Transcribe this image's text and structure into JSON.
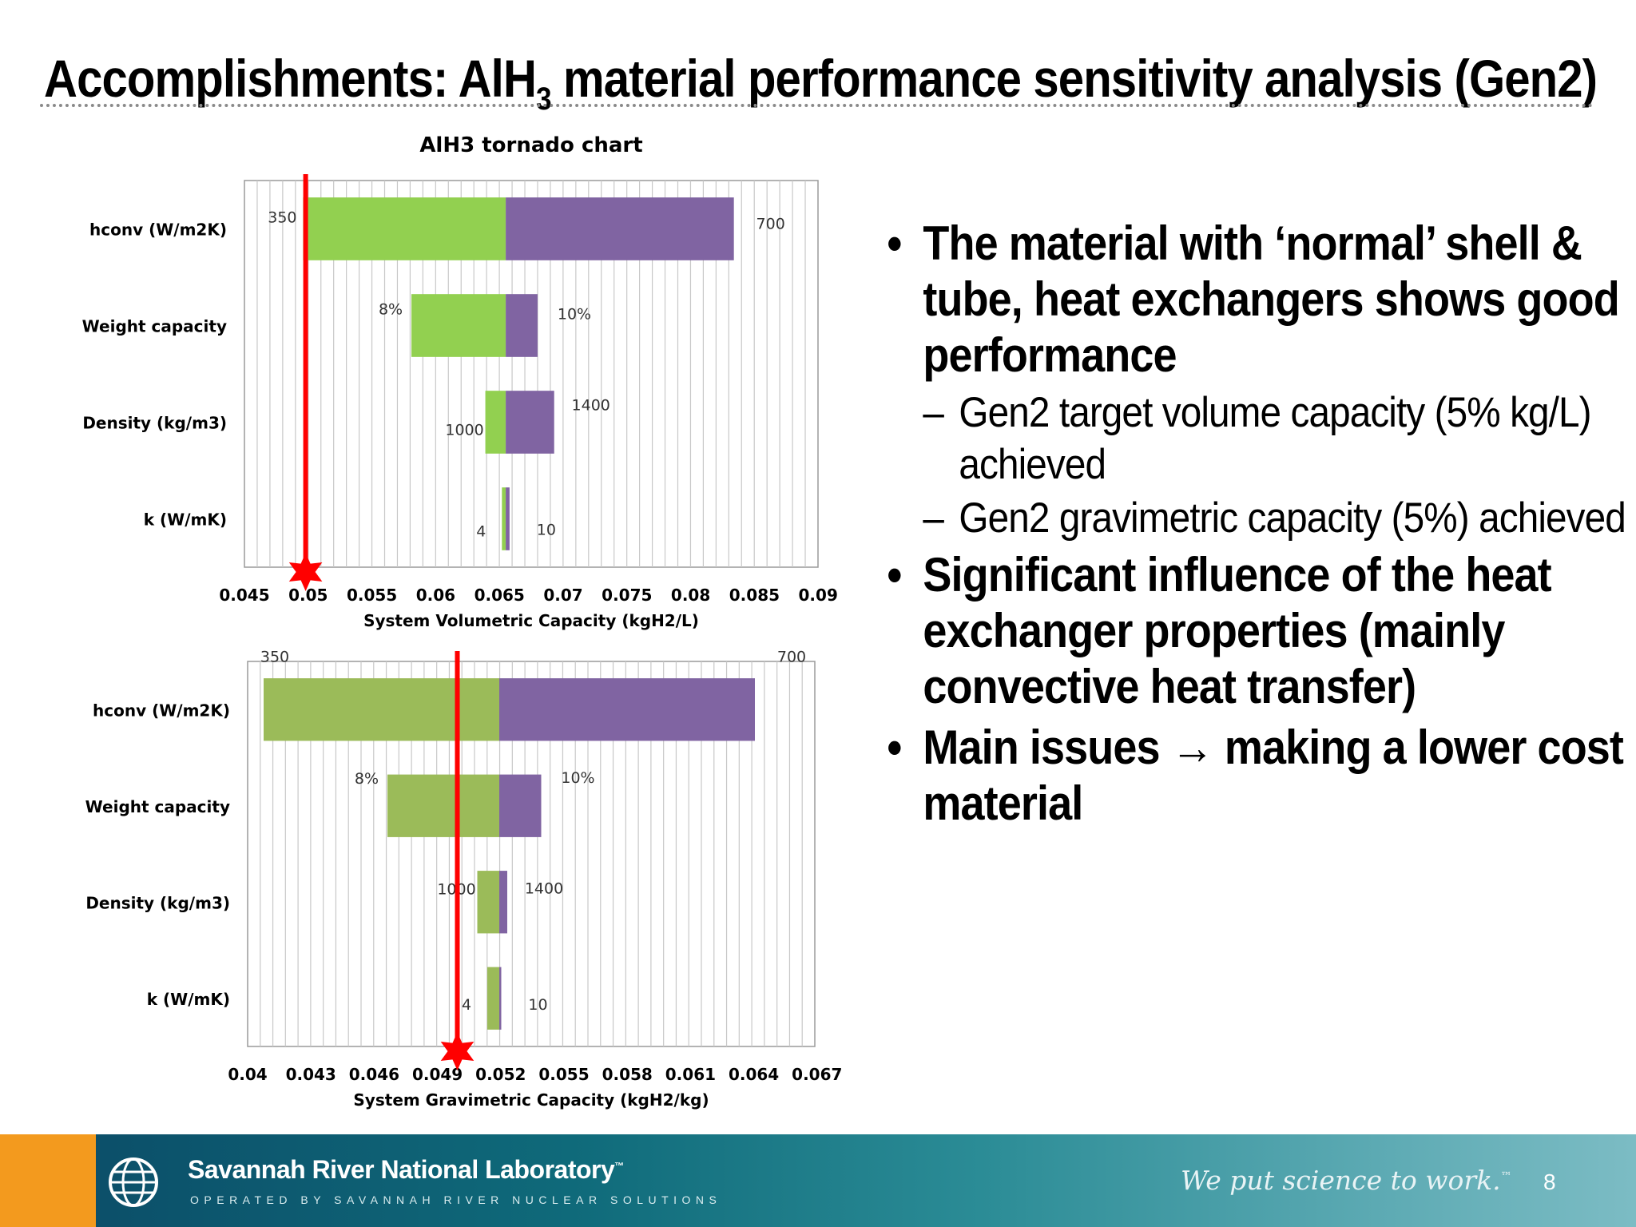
{
  "slide": {
    "title_main": "Accomplishments: AlH",
    "title_sub": "3",
    "title_rest": " material performance sensitivity analysis (Gen2)"
  },
  "chart_data": [
    {
      "type": "bar",
      "orientation": "horizontal-tornado",
      "title": "AlH3 tornado chart",
      "xlabel": "System Volumetric Capacity (kgH2/L)",
      "xlim": [
        0.045,
        0.09
      ],
      "xticks": [
        "0.045",
        "0.05",
        "0.055",
        "0.06",
        "0.065",
        "0.07",
        "0.075",
        "0.08",
        "0.085",
        "0.09"
      ],
      "baseline": 0.0655,
      "reference_line": 0.0498,
      "categories": [
        "hconv (W/m2K)",
        "Weight capacity",
        "Density (kg/m3)",
        "k (W/mK)"
      ],
      "bars": [
        {
          "low": 0.0496,
          "high": 0.0834,
          "low_label": "350",
          "high_label": "700"
        },
        {
          "low": 0.0581,
          "high": 0.068,
          "low_label": "8%",
          "high_label": "10%"
        },
        {
          "low": 0.0639,
          "high": 0.0693,
          "low_label": "1000",
          "high_label": "1400"
        },
        {
          "low": 0.0652,
          "high": 0.0658,
          "low_label": "4",
          "high_label": "10"
        }
      ],
      "colors": {
        "low": "#92d050",
        "high": "#8064a2",
        "marker": "#ff0000"
      },
      "grid": true
    },
    {
      "type": "bar",
      "orientation": "horizontal-tornado",
      "title": "",
      "xlabel": "System Gravimetric Capacity (kgH2/kg)",
      "xlim": [
        0.04,
        0.0684
      ],
      "xticks": [
        "0.04",
        "0.043",
        "0.046",
        "0.049",
        "0.052",
        "0.055",
        "0.058",
        "0.061",
        "0.064",
        "0.067"
      ],
      "baseline": 0.0526,
      "reference_line": 0.0505,
      "categories": [
        "hconv (W/m2K)",
        "Weight capacity",
        "Density (kg/m3)",
        "k (W/mK)"
      ],
      "bars": [
        {
          "low": 0.0408,
          "high": 0.0654,
          "low_label": "350",
          "high_label": "700"
        },
        {
          "low": 0.047,
          "high": 0.0547,
          "low_label": "8%",
          "high_label": "10%"
        },
        {
          "low": 0.0515,
          "high": 0.053,
          "low_label": "1000",
          "high_label": "1400"
        },
        {
          "low": 0.052,
          "high": 0.0527,
          "low_label": "4",
          "high_label": "10"
        }
      ],
      "colors": {
        "low": "#9bbb59",
        "high": "#8064a2",
        "marker": "#ff0000"
      },
      "grid": true
    }
  ],
  "bullets": [
    {
      "text": "The material with ‘normal’ shell & tube, heat exchangers shows good performance",
      "sub": [
        "Gen2 target volume capacity (5% kg/L) achieved",
        "Gen2 gravimetric capacity (5%) achieved"
      ]
    },
    {
      "text": "Significant influence of the heat exchanger properties (mainly convective heat transfer)",
      "sub": []
    },
    {
      "text": "Main issues → making a lower cost material",
      "sub": []
    }
  ],
  "footer": {
    "lab_name": "Savannah River National Laboratory",
    "lab_tm": "™",
    "lab_sub": "OPERATED BY SAVANNAH RIVER NUCLEAR SOLUTIONS",
    "tagline": "We put science to work.",
    "tagline_tm": "™",
    "page_number": "8"
  }
}
